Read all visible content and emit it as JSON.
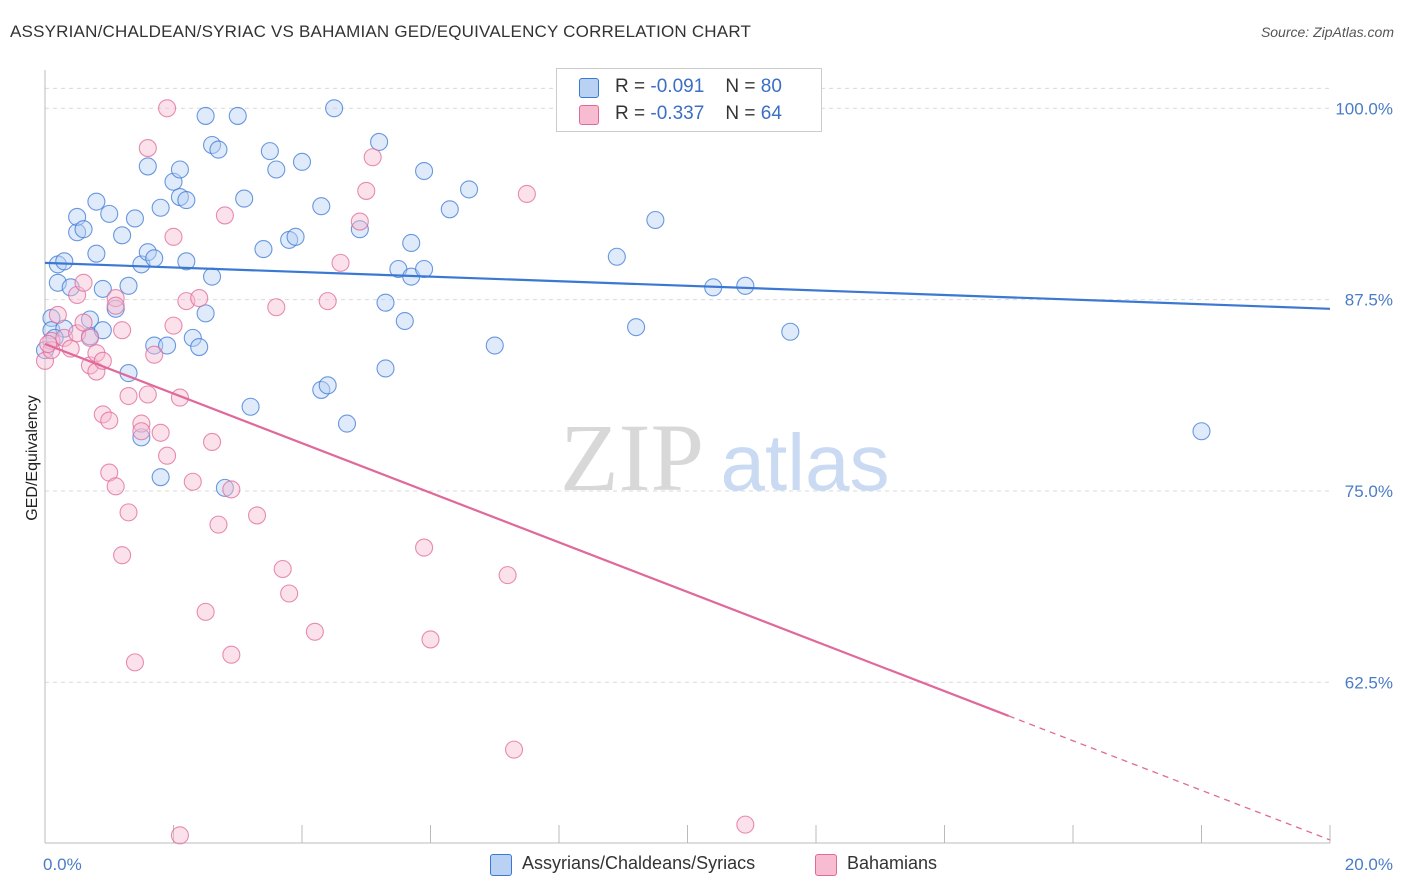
{
  "title": "ASSYRIAN/CHALDEAN/SYRIAC VS BAHAMIAN GED/EQUIVALENCY CORRELATION CHART",
  "source": "Source: ZipAtlas.com",
  "watermark": {
    "zip": "ZIP",
    "atlas": "atlas"
  },
  "colors": {
    "blue": "#3b78d4",
    "blue_fill": "#b9d1f3",
    "pink": "#e0689a",
    "pink_fill": "#f7bcd0",
    "tick_label": "#4a7cc7",
    "grid": "#d9d9d9"
  },
  "legend": {
    "r_label": "R =",
    "n_label": "N =",
    "rows": [
      {
        "r": "-0.091",
        "n": "80",
        "color": "blue"
      },
      {
        "r": "-0.337",
        "n": "64",
        "color": "pink"
      }
    ]
  },
  "chart_data": {
    "type": "scatter",
    "title": "ASSYRIAN/CHALDEAN/SYRIAC VS BAHAMIAN GED/EQUIVALENCY CORRELATION CHART",
    "xlabel": "",
    "ylabel": "GED/Equivalency",
    "xlim": [
      0,
      20
    ],
    "ylim": [
      52.0,
      102.5
    ],
    "x_tick_labels": [
      "0.0%",
      "20.0%"
    ],
    "y_ticks": [
      62.5,
      75.0,
      87.5,
      100.0
    ],
    "y_tick_labels": [
      "62.5%",
      "75.0%",
      "87.5%",
      "100.0%"
    ],
    "grid": "horizontal dashed",
    "legend_placement": "top-center",
    "series": [
      {
        "name": "Assyrians/Chaldeans/Syriacs",
        "color": "blue",
        "points": [
          [
            0.1,
            86.3
          ],
          [
            0.1,
            85.5
          ],
          [
            0.2,
            89.8
          ],
          [
            0.2,
            88.6
          ],
          [
            0.3,
            90.0
          ],
          [
            0.3,
            85.6
          ],
          [
            0.4,
            88.3
          ],
          [
            0.5,
            91.9
          ],
          [
            0.5,
            92.9
          ],
          [
            0.6,
            92.1
          ],
          [
            0.7,
            85.1
          ],
          [
            0.7,
            86.2
          ],
          [
            0.8,
            93.9
          ],
          [
            0.8,
            90.5
          ],
          [
            0.9,
            85.5
          ],
          [
            0.9,
            88.2
          ],
          [
            1.0,
            93.1
          ],
          [
            1.1,
            86.9
          ],
          [
            1.2,
            91.7
          ],
          [
            1.3,
            88.4
          ],
          [
            1.3,
            82.7
          ],
          [
            1.4,
            92.8
          ],
          [
            1.5,
            78.5
          ],
          [
            1.5,
            89.8
          ],
          [
            1.6,
            90.6
          ],
          [
            1.6,
            96.2
          ],
          [
            1.7,
            90.2
          ],
          [
            1.7,
            84.5
          ],
          [
            1.8,
            75.9
          ],
          [
            1.8,
            93.5
          ],
          [
            1.9,
            84.5
          ],
          [
            2.0,
            95.2
          ],
          [
            2.1,
            94.2
          ],
          [
            2.1,
            96.0
          ],
          [
            2.2,
            94.0
          ],
          [
            2.2,
            90.0
          ],
          [
            2.3,
            85.0
          ],
          [
            2.4,
            84.4
          ],
          [
            2.5,
            99.5
          ],
          [
            2.5,
            86.6
          ],
          [
            2.6,
            89.0
          ],
          [
            2.6,
            97.6
          ],
          [
            2.7,
            97.3
          ],
          [
            2.8,
            75.2
          ],
          [
            3.0,
            99.5
          ],
          [
            3.1,
            94.1
          ],
          [
            3.2,
            80.5
          ],
          [
            3.4,
            90.8
          ],
          [
            3.5,
            97.2
          ],
          [
            3.6,
            96.0
          ],
          [
            3.8,
            91.4
          ],
          [
            3.9,
            91.6
          ],
          [
            4.0,
            96.5
          ],
          [
            4.3,
            93.6
          ],
          [
            4.3,
            81.6
          ],
          [
            4.4,
            81.9
          ],
          [
            4.5,
            100.0
          ],
          [
            4.7,
            79.4
          ],
          [
            4.9,
            92.1
          ],
          [
            5.2,
            97.8
          ],
          [
            5.3,
            87.3
          ],
          [
            5.3,
            83.0
          ],
          [
            5.5,
            89.5
          ],
          [
            5.6,
            86.1
          ],
          [
            5.7,
            89.0
          ],
          [
            5.7,
            91.2
          ],
          [
            5.9,
            89.5
          ],
          [
            5.9,
            95.9
          ],
          [
            6.3,
            93.4
          ],
          [
            6.6,
            94.7
          ],
          [
            7.0,
            84.5
          ],
          [
            8.9,
            90.3
          ],
          [
            9.2,
            85.7
          ],
          [
            9.5,
            92.7
          ],
          [
            10.4,
            88.3
          ],
          [
            10.9,
            88.4
          ],
          [
            11.6,
            85.4
          ],
          [
            18.0,
            78.9
          ],
          [
            0.0,
            84.2
          ],
          [
            0.15,
            85.0
          ]
        ],
        "trend": {
          "x0": 0,
          "y0": 89.9,
          "x1": 20,
          "y1": 86.9
        }
      },
      {
        "name": "Bahamians",
        "color": "pink",
        "points": [
          [
            0.0,
            83.5
          ],
          [
            0.1,
            84.8
          ],
          [
            0.1,
            84.2
          ],
          [
            0.2,
            86.5
          ],
          [
            0.3,
            85.0
          ],
          [
            0.4,
            84.3
          ],
          [
            0.5,
            85.3
          ],
          [
            0.5,
            87.8
          ],
          [
            0.6,
            86.0
          ],
          [
            0.6,
            88.6
          ],
          [
            0.7,
            85.0
          ],
          [
            0.7,
            83.2
          ],
          [
            0.8,
            84.0
          ],
          [
            0.8,
            82.8
          ],
          [
            0.9,
            83.5
          ],
          [
            0.9,
            80.0
          ],
          [
            1.0,
            79.6
          ],
          [
            1.0,
            76.2
          ],
          [
            1.1,
            87.6
          ],
          [
            1.1,
            87.1
          ],
          [
            1.1,
            75.3
          ],
          [
            1.2,
            70.8
          ],
          [
            1.2,
            85.5
          ],
          [
            1.3,
            81.2
          ],
          [
            1.3,
            73.6
          ],
          [
            1.4,
            63.8
          ],
          [
            1.5,
            79.4
          ],
          [
            1.5,
            78.9
          ],
          [
            1.6,
            97.4
          ],
          [
            1.6,
            81.3
          ],
          [
            1.7,
            83.9
          ],
          [
            1.8,
            78.8
          ],
          [
            1.9,
            100.0
          ],
          [
            1.9,
            77.3
          ],
          [
            2.0,
            85.8
          ],
          [
            2.0,
            91.6
          ],
          [
            2.1,
            52.5
          ],
          [
            2.1,
            81.1
          ],
          [
            2.2,
            87.4
          ],
          [
            2.3,
            75.6
          ],
          [
            2.4,
            87.6
          ],
          [
            2.5,
            67.1
          ],
          [
            2.6,
            78.2
          ],
          [
            2.7,
            72.8
          ],
          [
            2.8,
            93.0
          ],
          [
            2.9,
            64.3
          ],
          [
            2.9,
            75.1
          ],
          [
            3.3,
            73.4
          ],
          [
            3.6,
            87.0
          ],
          [
            3.7,
            69.9
          ],
          [
            3.8,
            68.3
          ],
          [
            4.2,
            65.8
          ],
          [
            4.4,
            87.4
          ],
          [
            4.6,
            89.9
          ],
          [
            4.9,
            92.6
          ],
          [
            5.0,
            94.6
          ],
          [
            5.1,
            96.8
          ],
          [
            5.9,
            71.3
          ],
          [
            6.0,
            65.3
          ],
          [
            7.2,
            69.5
          ],
          [
            7.3,
            58.1
          ],
          [
            7.5,
            94.4
          ],
          [
            10.9,
            53.2
          ],
          [
            0.05,
            84.6
          ]
        ],
        "trend": {
          "x0": 0,
          "y0": 84.6,
          "x1": 15.0,
          "y1": 60.3
        },
        "trend_dashed": {
          "x0": 15.0,
          "y0": 60.3,
          "x1": 20,
          "y1": 52.2
        }
      }
    ]
  },
  "bottom_legend": [
    {
      "label": "Assyrians/Chaldeans/Syriacs",
      "color": "blue"
    },
    {
      "label": "Bahamians",
      "color": "pink"
    }
  ]
}
